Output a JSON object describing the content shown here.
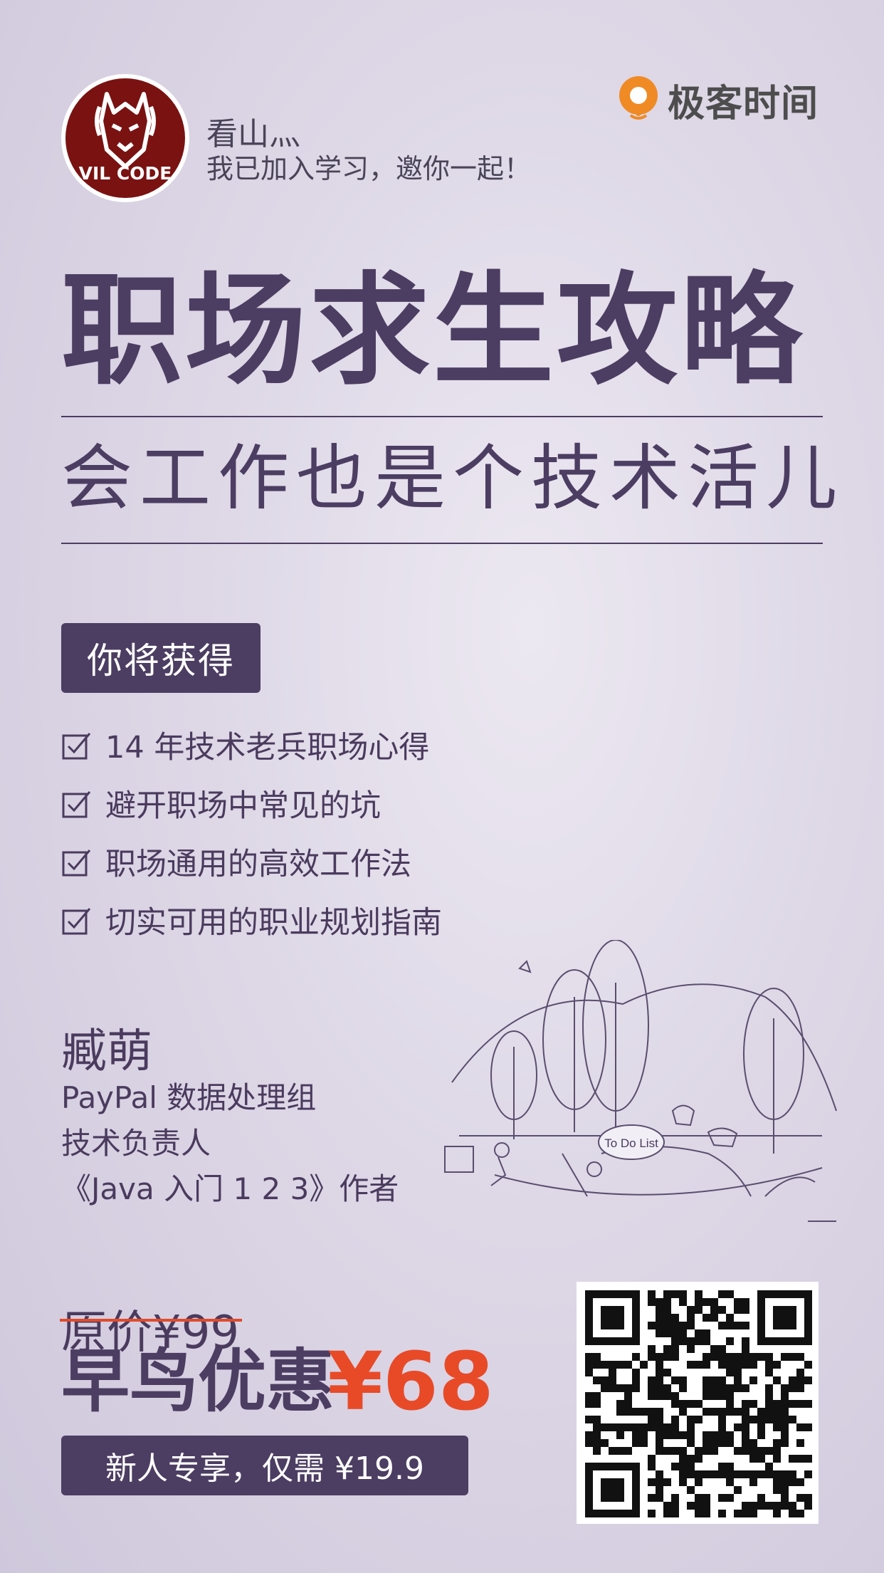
{
  "header": {
    "avatar_text": "VIL CODE",
    "user_name": "看山灬",
    "invite_text": "我已加入学习，邀你一起！",
    "brand_name": "极客时间"
  },
  "course": {
    "title": "职场求生攻略",
    "subtitle": "会工作也是个技术活儿"
  },
  "gains": {
    "tag": "你将获得",
    "items": [
      "14 年技术老兵职场心得",
      "避开职场中常见的坑",
      "职场通用的高效工作法",
      "切实可用的职业规划指南"
    ]
  },
  "author": {
    "name": "臧萌",
    "lines": [
      "PayPal 数据处理组",
      "技术负责人",
      "《Java 入门 1 2 3》作者"
    ]
  },
  "illustration": {
    "sign_text": "To Do List"
  },
  "pricing": {
    "original": "原价¥99",
    "early_label": "早鸟优惠",
    "early_price": "¥68",
    "newbie": "新人专享，仅需 ¥19.9"
  },
  "colors": {
    "primary": "#4c3d62",
    "accent": "#e84a27",
    "brand_orange": "#f08a24"
  }
}
